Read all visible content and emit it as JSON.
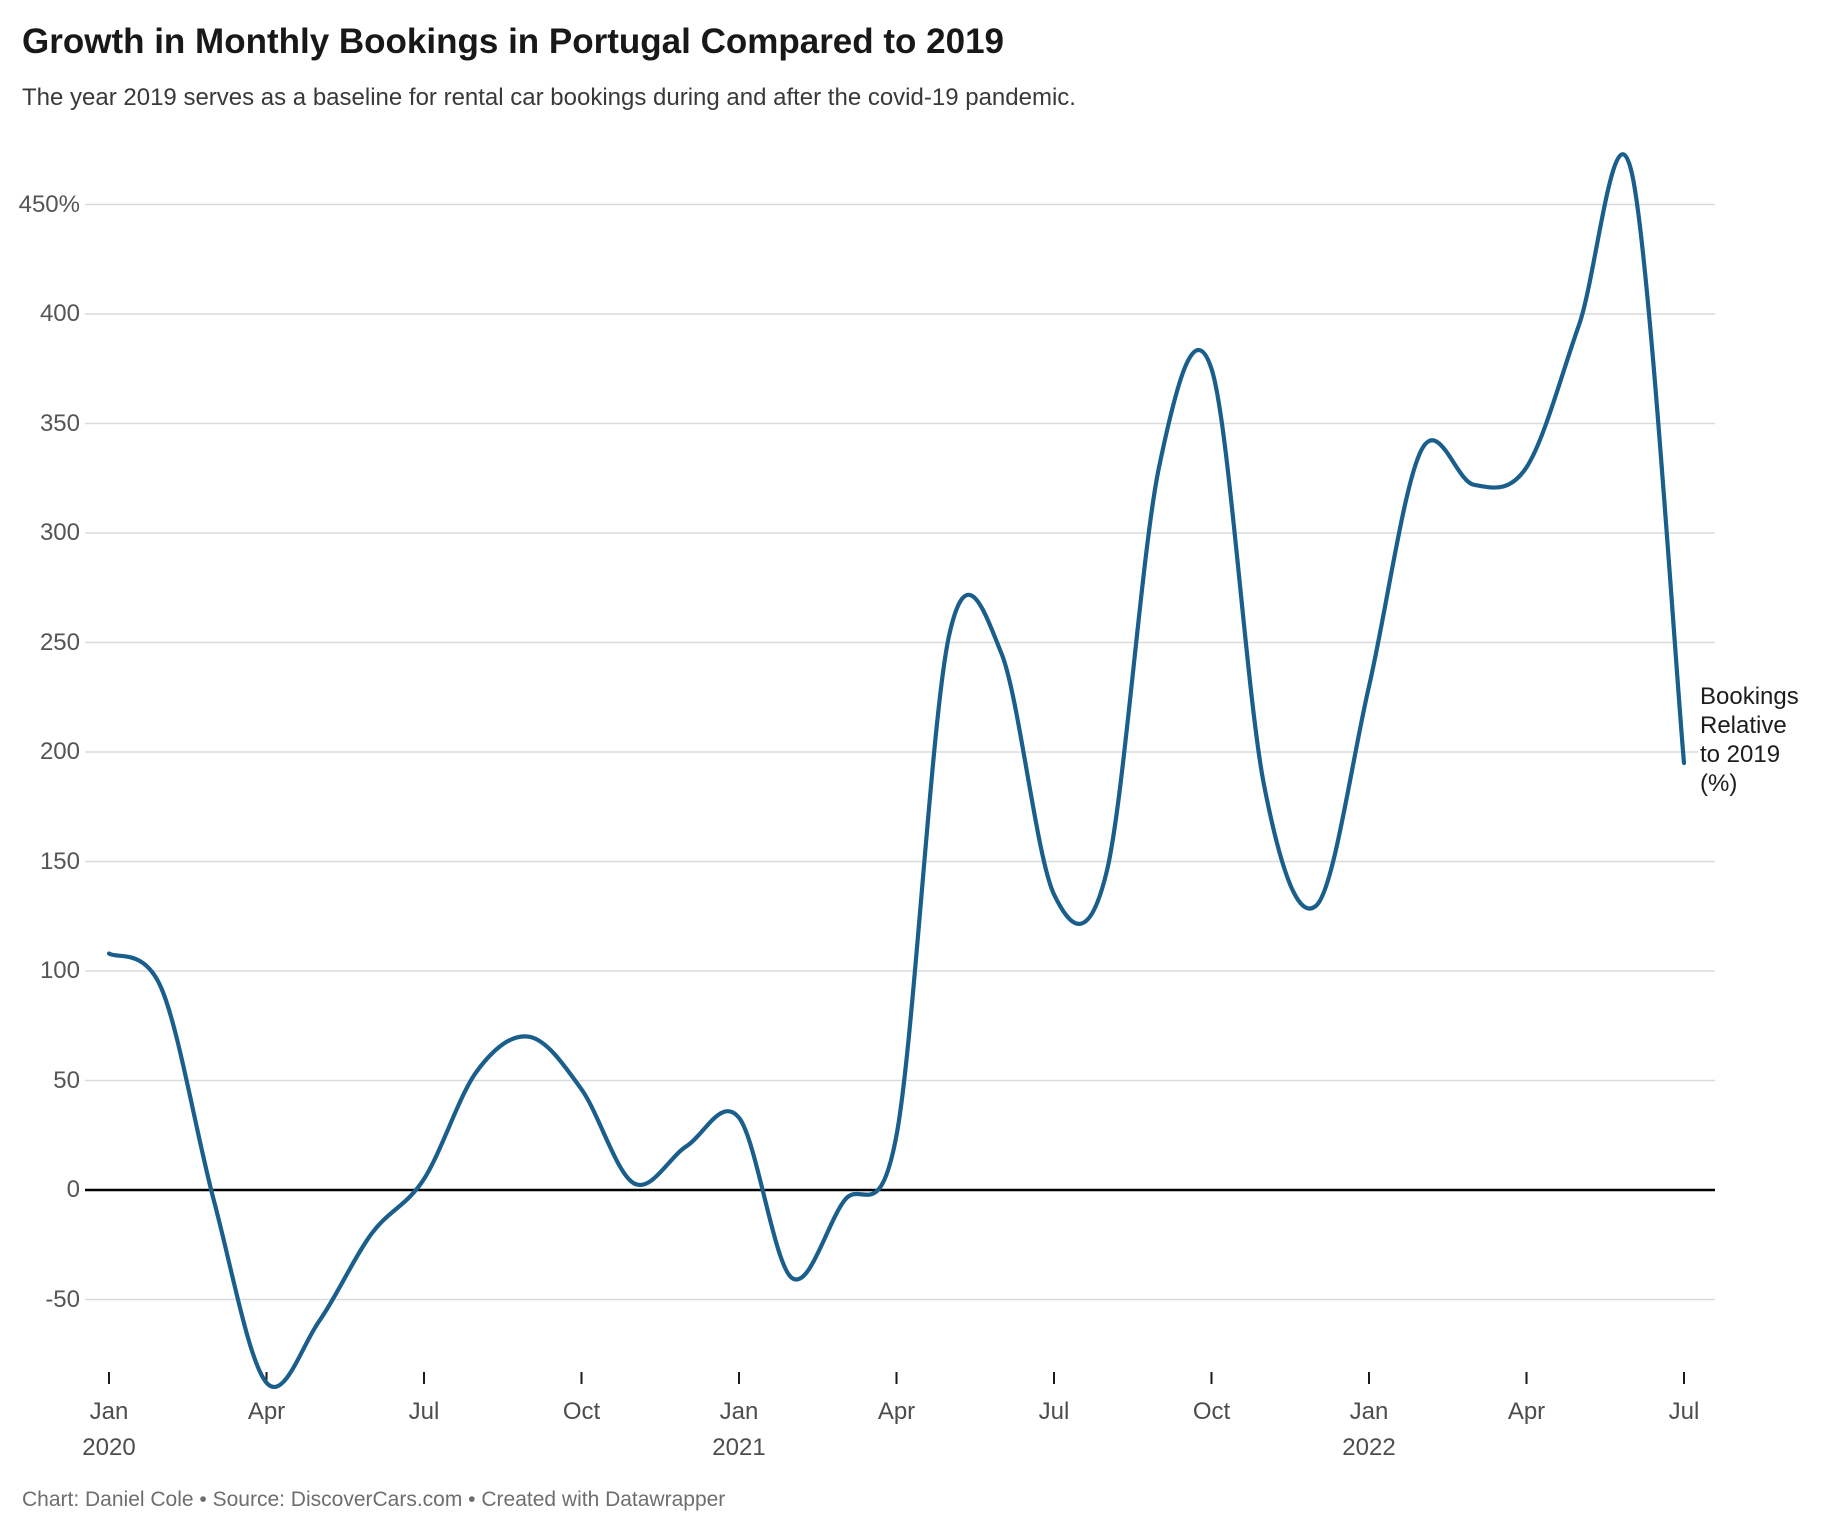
{
  "header": {
    "title": "Growth in Monthly Bookings in Portugal Compared to 2019",
    "subtitle": "The year 2019 serves as a baseline for rental car bookings during and after the covid-19 pandemic."
  },
  "annotation": {
    "lines": [
      "Bookings",
      "Relative",
      "to 2019",
      "(%)"
    ]
  },
  "footer": {
    "text": "Chart: Daniel Cole • Source: DiscoverCars.com • Created with Datawrapper"
  },
  "chart_data": {
    "type": "line",
    "title": "Growth in Monthly Bookings in Portugal Compared to 2019",
    "subtitle": "The year 2019 serves as a baseline for rental car bookings during and after the covid-19 pandemic.",
    "series_label": "Bookings Relative to 2019 (%)",
    "xlabel": "",
    "ylabel": "Bookings Relative to 2019 (%)",
    "curve": "smooth",
    "grid": "horizontal",
    "ylim": [
      -100,
      480
    ],
    "x_categories": [
      "Jan 2020",
      "Feb 2020",
      "Mar 2020",
      "Apr 2020",
      "May 2020",
      "Jun 2020",
      "Jul 2020",
      "Aug 2020",
      "Sep 2020",
      "Oct 2020",
      "Nov 2020",
      "Dec 2020",
      "Jan 2021",
      "Feb 2021",
      "Mar 2021",
      "Apr 2021",
      "May 2021",
      "Jun 2021",
      "Jul 2021",
      "Aug 2021",
      "Sep 2021",
      "Oct 2021",
      "Nov 2021",
      "Dec 2021",
      "Jan 2022",
      "Feb 2022",
      "Mar 2022",
      "Apr 2022",
      "May 2022",
      "Jun 2022",
      "Jul 2022"
    ],
    "values": [
      108,
      92,
      -5,
      -88,
      -60,
      -20,
      5,
      54,
      70,
      46,
      3,
      20,
      33,
      -40,
      -5,
      25,
      253,
      245,
      135,
      145,
      330,
      375,
      185,
      130,
      230,
      338,
      322,
      330,
      395,
      465,
      195
    ],
    "yticks": [
      {
        "value": 450,
        "label": "450%"
      },
      {
        "value": 400,
        "label": "400"
      },
      {
        "value": 350,
        "label": "350"
      },
      {
        "value": 300,
        "label": "300"
      },
      {
        "value": 250,
        "label": "250"
      },
      {
        "value": 200,
        "label": "200"
      },
      {
        "value": 150,
        "label": "150"
      },
      {
        "value": 100,
        "label": "100"
      },
      {
        "value": 50,
        "label": "50"
      },
      {
        "value": 0,
        "label": "0"
      },
      {
        "value": -50,
        "label": "-50"
      }
    ],
    "xticks": [
      {
        "label": "Jan",
        "year": "2020",
        "month_index": 0
      },
      {
        "label": "Apr",
        "year": "",
        "month_index": 3
      },
      {
        "label": "Jul",
        "year": "",
        "month_index": 6
      },
      {
        "label": "Oct",
        "year": "",
        "month_index": 9
      },
      {
        "label": "Jan",
        "year": "2021",
        "month_index": 12
      },
      {
        "label": "Apr",
        "year": "",
        "month_index": 15
      },
      {
        "label": "Jul",
        "year": "",
        "month_index": 18
      },
      {
        "label": "Oct",
        "year": "",
        "month_index": 21
      },
      {
        "label": "Jan",
        "year": "2022",
        "month_index": 24
      },
      {
        "label": "Apr",
        "year": "",
        "month_index": 27
      },
      {
        "label": "Jul",
        "year": "",
        "month_index": 30
      }
    ],
    "colors": {
      "line": "#1a5e8c",
      "grid": "#dadada",
      "zero_line": "#000000",
      "tick": "#1a1a1a"
    }
  }
}
